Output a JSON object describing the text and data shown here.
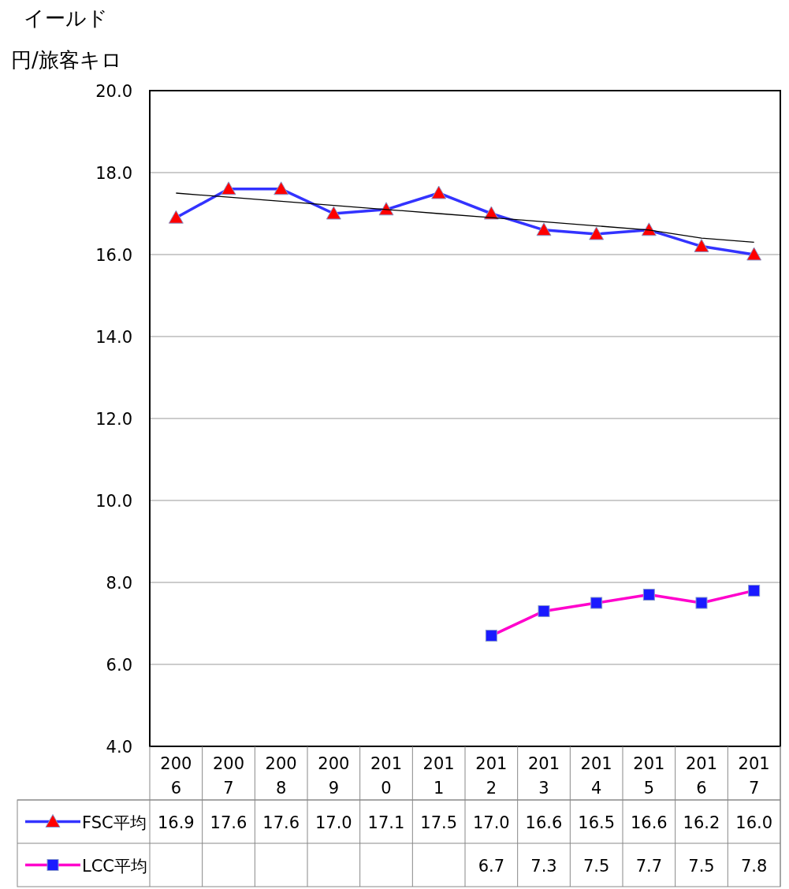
{
  "chart_data": {
    "type": "line",
    "title": "イールド",
    "ylabel": "円/旅客キロ",
    "categories": [
      "2006",
      "2007",
      "2008",
      "2009",
      "2010",
      "2011",
      "2012",
      "2013",
      "2014",
      "2015",
      "2016",
      "2017"
    ],
    "series": [
      {
        "name": "FSC平均",
        "color": "#3333ff",
        "marker": "triangle",
        "colors": [
          "#ff0000",
          "#ff0000",
          "#ff0000",
          "#ff0000",
          "#ff0000",
          "#ff0000",
          "#ff0000",
          "#ff0000",
          "#ff0000",
          "#ff0000",
          "#ff0000",
          "#ff0000"
        ],
        "values": [
          16.9,
          17.6,
          17.6,
          17.0,
          17.1,
          17.5,
          17.0,
          16.6,
          16.5,
          16.6,
          16.2,
          16.0
        ],
        "value_labels": [
          "16.9",
          "17.6",
          "17.6",
          "17.0",
          "17.1",
          "17.5",
          "17.0",
          "16.6",
          "16.5",
          "16.6",
          "16.2",
          "16.0"
        ]
      },
      {
        "name": "LCC平均",
        "color": "#ff00cc",
        "marker": "square",
        "colors": [
          null,
          null,
          null,
          null,
          null,
          null,
          "#1a1aff",
          "#1a1aff",
          "#1a1aff",
          "#1a1aff",
          "#1a1aff",
          "#1a1aff"
        ],
        "values": [
          null,
          null,
          null,
          null,
          null,
          null,
          6.7,
          7.3,
          7.5,
          7.7,
          7.5,
          7.8
        ],
        "value_labels": [
          null,
          null,
          null,
          null,
          null,
          null,
          "6.7",
          "7.3",
          "7.5",
          "7.7",
          "7.5",
          "7.8"
        ]
      },
      {
        "type": "line",
        "color": "#000000",
        "marker": "none",
        "values": [
          17.5,
          17.4,
          17.3,
          17.2,
          17.1,
          17.0,
          16.9,
          16.8,
          16.7,
          16.6,
          16.4,
          16.3
        ]
      }
    ],
    "ylim": [
      4,
      20
    ],
    "yticks": [
      {
        "value": 4,
        "label": "4.0"
      },
      {
        "value": 6,
        "label": "6.0"
      },
      {
        "value": 8,
        "label": "8.0"
      },
      {
        "value": 10,
        "label": "10.0"
      },
      {
        "value": 12,
        "label": "12.0"
      },
      {
        "value": 14,
        "label": "14.0"
      },
      {
        "value": 16,
        "label": "16.0"
      },
      {
        "value": 18,
        "label": "18.0"
      },
      {
        "value": 20,
        "label": "20.0"
      }
    ],
    "grid": "y",
    "legend": "bottom"
  }
}
